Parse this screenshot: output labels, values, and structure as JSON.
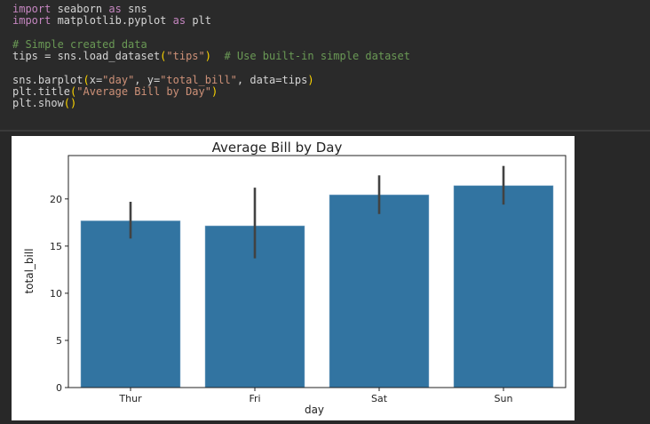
{
  "code_cell": {
    "lines": [
      [
        {
          "t": "import",
          "c": "kw"
        },
        {
          "t": " seaborn ",
          "c": ""
        },
        {
          "t": "as",
          "c": "kw"
        },
        {
          "t": " sns",
          "c": ""
        }
      ],
      [
        {
          "t": "import",
          "c": "kw"
        },
        {
          "t": " matplotlib.pyplot ",
          "c": ""
        },
        {
          "t": "as",
          "c": "kw"
        },
        {
          "t": " plt",
          "c": ""
        }
      ],
      [],
      [
        {
          "t": "# Simple created data",
          "c": "cm"
        }
      ],
      [
        {
          "t": "tips = sns.load_dataset",
          "c": ""
        },
        {
          "t": "(",
          "c": "pr"
        },
        {
          "t": "\"tips\"",
          "c": "st"
        },
        {
          "t": ")",
          "c": "pr"
        },
        {
          "t": "  ",
          "c": ""
        },
        {
          "t": "# Use built-in simple dataset",
          "c": "cm"
        }
      ],
      [],
      [
        {
          "t": "sns.barplot",
          "c": ""
        },
        {
          "t": "(",
          "c": "pr"
        },
        {
          "t": "x=",
          "c": ""
        },
        {
          "t": "\"day\"",
          "c": "st"
        },
        {
          "t": ", y=",
          "c": ""
        },
        {
          "t": "\"total_bill\"",
          "c": "st"
        },
        {
          "t": ", data=tips",
          "c": ""
        },
        {
          "t": ")",
          "c": "pr"
        }
      ],
      [
        {
          "t": "plt.title",
          "c": ""
        },
        {
          "t": "(",
          "c": "pr"
        },
        {
          "t": "\"Average Bill by Day\"",
          "c": "st"
        },
        {
          "t": ")",
          "c": "pr"
        }
      ],
      [
        {
          "t": "plt.show",
          "c": ""
        },
        {
          "t": "()",
          "c": "pr"
        }
      ]
    ]
  },
  "chart_data": {
    "type": "bar",
    "title": "Average Bill by Day",
    "xlabel": "day",
    "ylabel": "total_bill",
    "categories": [
      "Thur",
      "Fri",
      "Sat",
      "Sun"
    ],
    "values": [
      17.68,
      17.15,
      20.44,
      21.41
    ],
    "ci_low": [
      15.8,
      13.7,
      18.4,
      19.4
    ],
    "ci_high": [
      19.7,
      21.2,
      22.5,
      23.5
    ],
    "yticks": [
      0,
      5,
      10,
      15,
      20
    ],
    "ylim": [
      0,
      24.6
    ],
    "bar_color": "#3274a1",
    "err_color": "#424242"
  }
}
